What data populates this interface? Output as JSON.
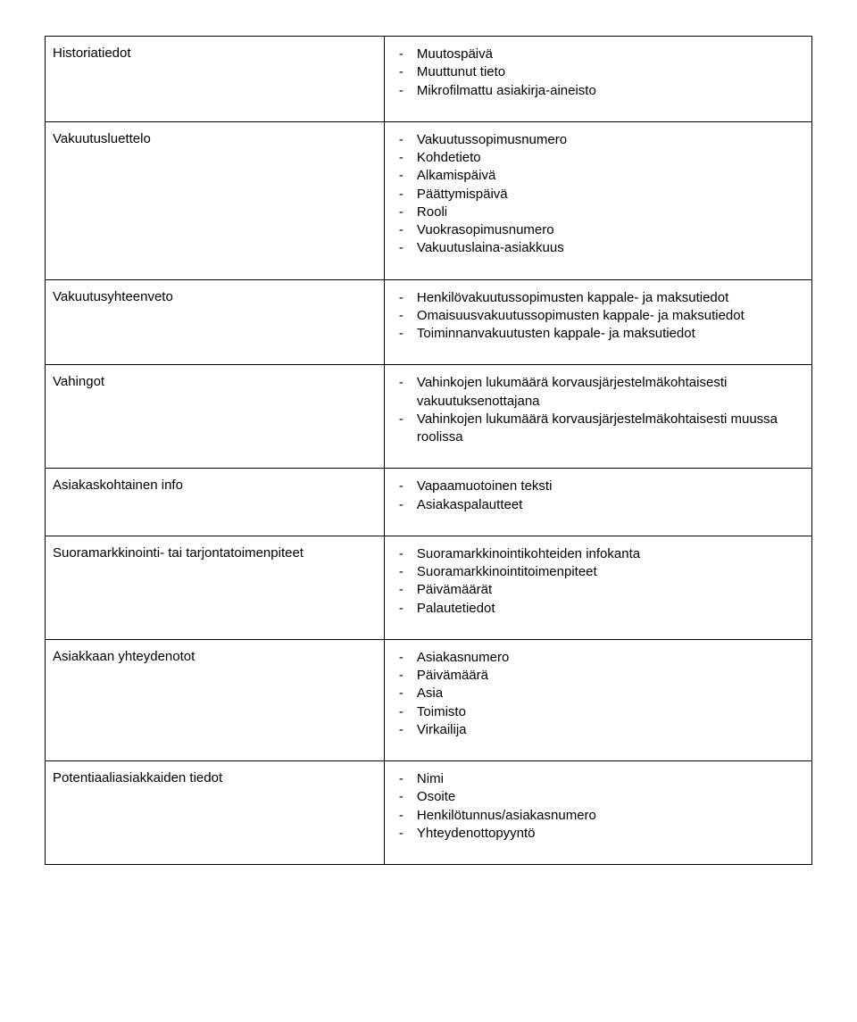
{
  "rows": [
    {
      "label": "Historiatiedot",
      "items": [
        "Muutospäivä",
        "Muuttunut tieto",
        "Mikrofilmattu asiakirja-aineisto"
      ]
    },
    {
      "label": "Vakuutusluettelo",
      "items": [
        "Vakuutussopimusnumero",
        "Kohdetieto",
        "Alkamispäivä",
        "Päättymispäivä",
        "Rooli",
        "Vuokrasopimusnumero",
        "Vakuutuslaina-asiakkuus"
      ]
    },
    {
      "label": "Vakuutusyhteenveto",
      "items": [
        "Henkilövakuutussopimusten kappale- ja maksutiedot",
        "Omaisuusvakuutussopimusten kappale- ja maksutiedot",
        "Toiminnanvakuutusten kappale- ja maksutiedot"
      ]
    },
    {
      "label": "Vahingot",
      "items": [
        "Vahinkojen lukumäärä korvausjärjestelmäkohtaisesti vakuutuksenottajana",
        "Vahinkojen lukumäärä korvausjärjestelmäkohtaisesti muussa roolissa"
      ]
    },
    {
      "label": "Asiakaskohtainen info",
      "items": [
        "Vapaamuotoinen teksti",
        "Asiakaspalautteet"
      ]
    },
    {
      "label": "Suoramarkkinointi- tai tarjontatoimenpiteet",
      "items": [
        "Suoramarkkinointikohteiden infokanta",
        "Suoramarkkinointitoimenpiteet",
        "Päivämäärät",
        "Palautetiedot"
      ]
    },
    {
      "label": "Asiakkaan yhteydenotot",
      "items": [
        "Asiakasnumero",
        "Päivämäärä",
        "Asia",
        "Toimisto",
        "Virkailija"
      ]
    },
    {
      "label": "Potentiaaliasiakkaiden tiedot",
      "items": [
        "Nimi",
        "Osoite",
        "Henkilötunnus/asiakasnumero",
        "Yhteydenottopyyntö"
      ]
    }
  ]
}
